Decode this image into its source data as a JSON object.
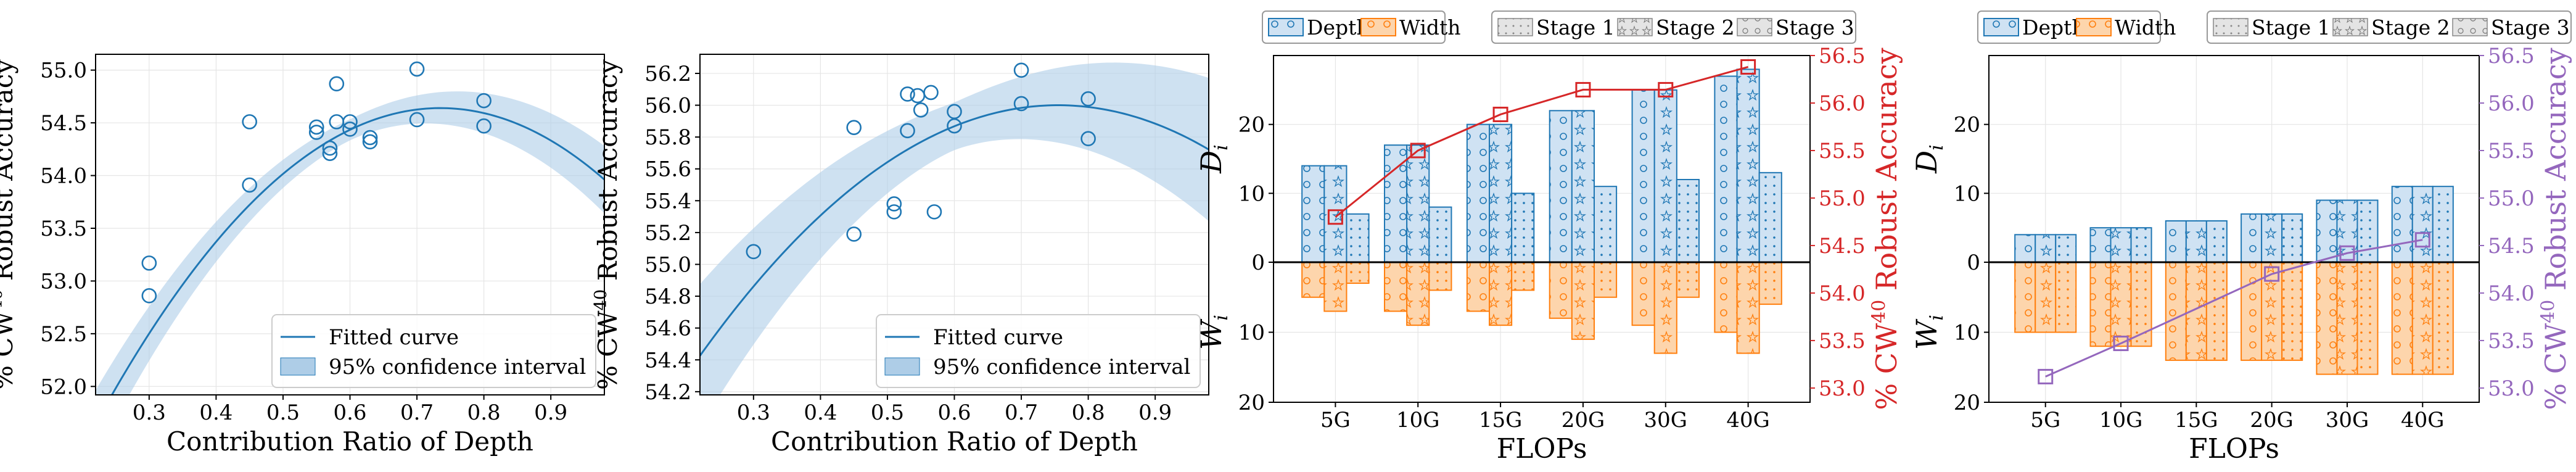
{
  "colors": {
    "blue": "#1f77b4",
    "ci_fill": "#aecde7",
    "depth_fill": "#cfe2f3",
    "width_fill": "#fdd5ac",
    "width_edge": "#ff7f0e",
    "red": "#d62728",
    "purple": "#9467bd",
    "grid": "#e5e5e5"
  },
  "chart_data": [
    {
      "type": "scatter",
      "xlabel": "Contribution Ratio of Depth",
      "ylabel": "% CW40 Robust Accuracy",
      "xlim": [
        0.22,
        0.98
      ],
      "ylim": [
        51.92,
        55.15
      ],
      "xticks": [
        "0.3",
        "0.4",
        "0.5",
        "0.6",
        "0.7",
        "0.8",
        "0.9"
      ],
      "yticks": [
        "52.0",
        "52.5",
        "53.0",
        "53.5",
        "54.0",
        "54.5",
        "55.0"
      ],
      "points": [
        [
          0.3,
          53.17
        ],
        [
          0.3,
          52.86
        ],
        [
          0.45,
          54.51
        ],
        [
          0.45,
          53.91
        ],
        [
          0.55,
          54.46
        ],
        [
          0.55,
          54.41
        ],
        [
          0.57,
          54.26
        ],
        [
          0.57,
          54.21
        ],
        [
          0.58,
          54.87
        ],
        [
          0.58,
          54.51
        ],
        [
          0.6,
          54.51
        ],
        [
          0.6,
          54.44
        ],
        [
          0.63,
          54.36
        ],
        [
          0.63,
          54.32
        ],
        [
          0.7,
          55.01
        ],
        [
          0.7,
          54.53
        ],
        [
          0.8,
          54.71
        ],
        [
          0.8,
          54.47
        ]
      ],
      "fit": {
        "a": -11.3,
        "peak_x": 0.735,
        "peak_y": 54.64
      },
      "ci": {
        "half_width_min": 0.1,
        "half_width_max": 0.32,
        "center_x": 0.6
      },
      "legend": [
        "Fitted curve",
        "95% confidence interval"
      ],
      "legend_position": "lower-right",
      "grid": true
    },
    {
      "type": "scatter",
      "xlabel": "Contribution Ratio of Depth",
      "ylabel": "% CW40 Robust Accuracy",
      "xlim": [
        0.22,
        0.98
      ],
      "ylim": [
        54.18,
        56.32
      ],
      "xticks": [
        "0.3",
        "0.4",
        "0.5",
        "0.6",
        "0.7",
        "0.8",
        "0.9"
      ],
      "yticks": [
        "54.2",
        "54.4",
        "54.6",
        "54.8",
        "55.0",
        "55.2",
        "55.4",
        "55.6",
        "55.8",
        "56.0",
        "56.2"
      ],
      "points": [
        [
          0.3,
          55.08
        ],
        [
          0.45,
          55.86
        ],
        [
          0.45,
          55.19
        ],
        [
          0.51,
          55.38
        ],
        [
          0.51,
          55.33
        ],
        [
          0.53,
          56.07
        ],
        [
          0.53,
          55.84
        ],
        [
          0.545,
          56.06
        ],
        [
          0.55,
          55.97
        ],
        [
          0.565,
          56.08
        ],
        [
          0.57,
          55.33
        ],
        [
          0.6,
          55.96
        ],
        [
          0.6,
          55.87
        ],
        [
          0.7,
          56.22
        ],
        [
          0.7,
          56.01
        ],
        [
          0.8,
          56.04
        ],
        [
          0.8,
          55.79
        ]
      ],
      "fit": {
        "a": -5.5,
        "peak_x": 0.755,
        "peak_y": 56.0
      },
      "ci": {
        "half_width_min": 0.15,
        "half_width_max": 0.45,
        "center_x": 0.6
      },
      "legend": [
        "Fitted curve",
        "95% confidence interval"
      ],
      "legend_position": "lower-right",
      "grid": true
    },
    {
      "type": "bar",
      "xlabel": "FLOPs",
      "ylabel_top": "D",
      "ylabel_top_sub": "i",
      "ylabel_bottom": "W",
      "ylabel_bottom_sub": "i",
      "ylabel_right": "% CW40 Robust Accuracy",
      "categories": [
        "5G",
        "10G",
        "15G",
        "20G",
        "30G",
        "40G"
      ],
      "depth": [
        [
          14,
          14,
          7
        ],
        [
          17,
          17,
          8
        ],
        [
          20,
          20,
          10
        ],
        [
          22,
          22,
          11
        ],
        [
          25,
          25,
          12
        ],
        [
          27,
          28,
          13
        ]
      ],
      "width": [
        [
          5,
          7,
          3
        ],
        [
          7,
          9,
          4
        ],
        [
          7,
          9,
          4
        ],
        [
          8,
          11,
          5
        ],
        [
          9,
          13,
          5
        ],
        [
          10,
          13,
          6
        ]
      ],
      "ylim_depth": [
        0,
        30
      ],
      "ylim_width": [
        0,
        20
      ],
      "yticks": [
        "20",
        "10",
        "0",
        "10",
        "20"
      ],
      "y2lim": [
        52.85,
        56.5
      ],
      "y2ticks": [
        "53.0",
        "53.5",
        "54.0",
        "54.5",
        "55.0",
        "55.5",
        "56.0",
        "56.5"
      ],
      "accuracy": [
        54.8,
        55.5,
        55.88,
        56.14,
        56.14,
        56.38
      ],
      "line_color": "red",
      "legend_top": [
        "Depth",
        "Width"
      ],
      "legend_stages": [
        "Stage 1",
        "Stage 2",
        "Stage 3"
      ],
      "grid": true
    },
    {
      "type": "bar",
      "xlabel": "FLOPs",
      "ylabel_top": "D",
      "ylabel_top_sub": "i",
      "ylabel_bottom": "W",
      "ylabel_bottom_sub": "i",
      "ylabel_right": "% CW40 Robust Accuracy",
      "categories": [
        "5G",
        "10G",
        "15G",
        "20G",
        "30G",
        "40G"
      ],
      "depth": [
        [
          4,
          4,
          4
        ],
        [
          5,
          5,
          5
        ],
        [
          6,
          6,
          6
        ],
        [
          7,
          7,
          7
        ],
        [
          9,
          9,
          9
        ],
        [
          11,
          11,
          11
        ]
      ],
      "width": [
        [
          10,
          10,
          10
        ],
        [
          12,
          12,
          12
        ],
        [
          14,
          14,
          14
        ],
        [
          14,
          14,
          14
        ],
        [
          16,
          16,
          16
        ],
        [
          16,
          16,
          16
        ]
      ],
      "ylim_depth": [
        0,
        30
      ],
      "ylim_width": [
        0,
        20
      ],
      "yticks": [
        "20",
        "10",
        "0",
        "10",
        "20"
      ],
      "y2lim": [
        52.85,
        56.5
      ],
      "y2ticks": [
        "53.0",
        "53.5",
        "54.0",
        "54.5",
        "55.0",
        "55.5",
        "56.0",
        "56.5"
      ],
      "accuracy": [
        53.12,
        53.47,
        54.2,
        54.42,
        54.56
      ],
      "accuracy_categories": [
        0,
        1,
        3,
        4,
        5
      ],
      "line_color": "purple",
      "legend_top": [
        "Depth",
        "Width"
      ],
      "legend_stages": [
        "Stage 1",
        "Stage 2",
        "Stage 3"
      ],
      "grid": true
    }
  ]
}
